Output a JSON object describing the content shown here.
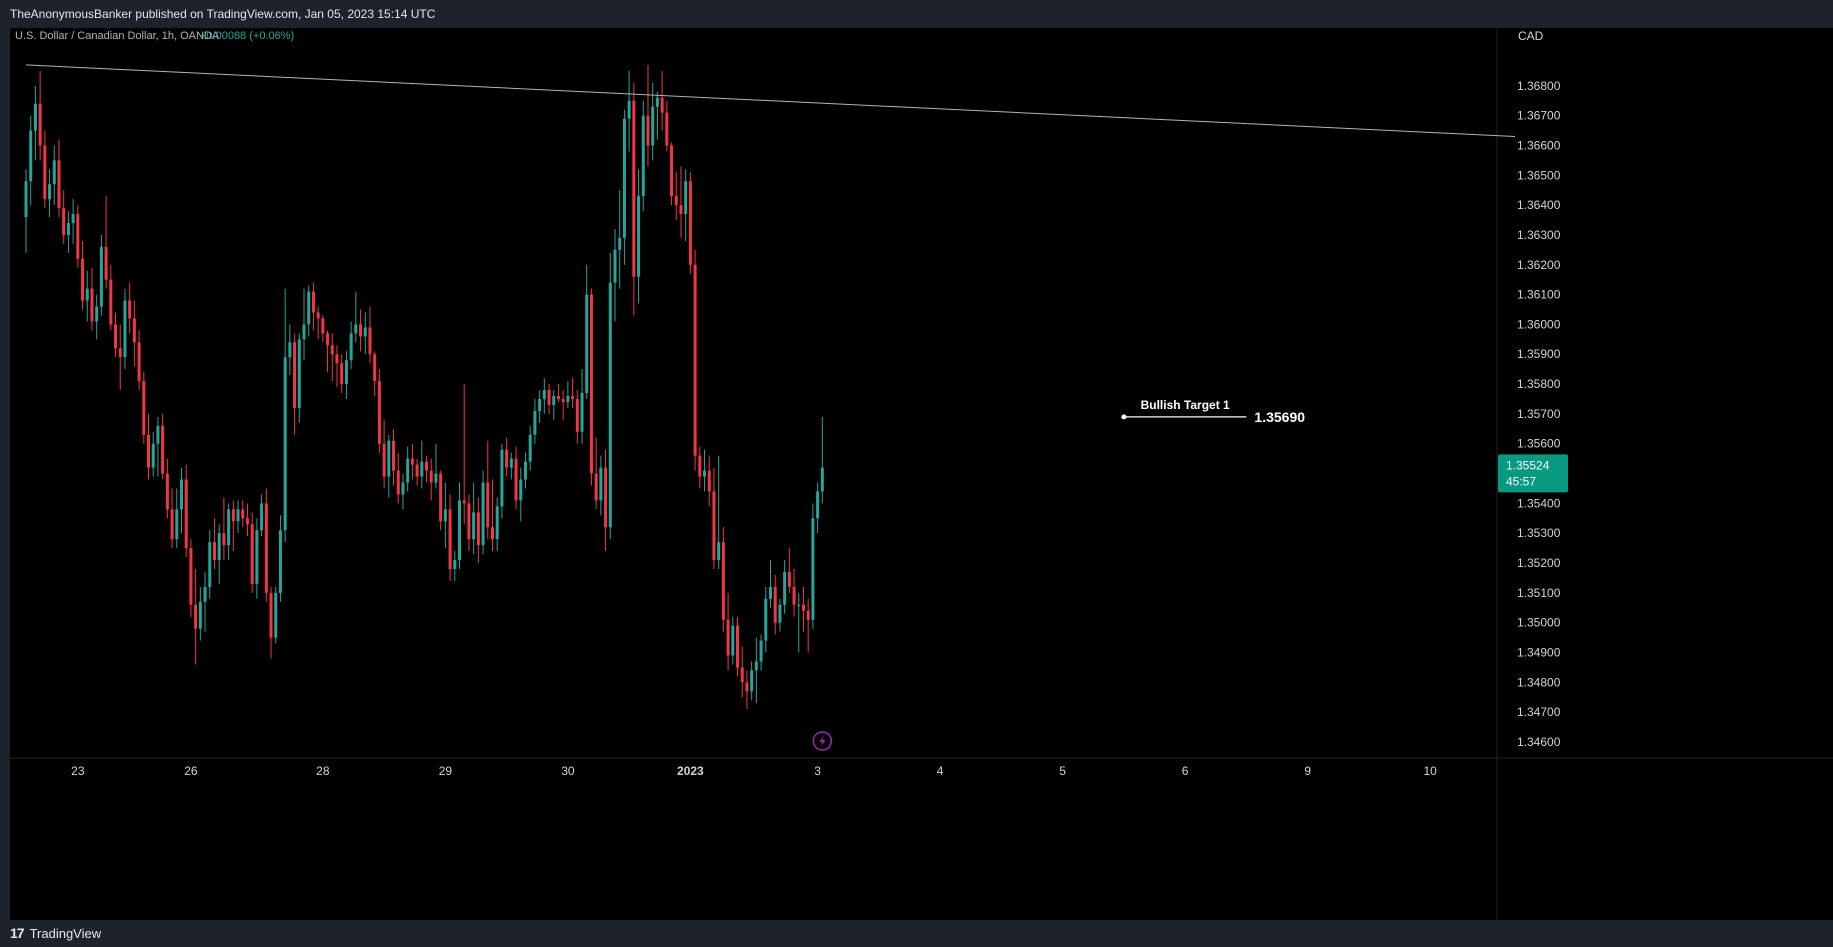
{
  "header": {
    "published_text": "TheAnonymousBanker published on TradingView.com, Jan 05, 2023 15:14 UTC"
  },
  "footer": {
    "logo_mark": "17",
    "logo_text": "TradingView"
  },
  "colors": {
    "up": "#26a69a",
    "down": "#f23645",
    "background": "#000000",
    "frame": "#1e222d",
    "price_label_bg": "#089981",
    "indicator": "#9c27b0"
  },
  "chart_data": {
    "type": "candlestick",
    "symbol_text": "U.S. Dollar / Canadian Dollar, 1h, OANDA",
    "change_text": "+0.00088 (+0.06%)",
    "currency": "CAD",
    "ylim": [
      1.3459,
      1.3692
    ],
    "y_ticks": [
      "1.34600",
      "1.34700",
      "1.34800",
      "1.34900",
      "1.35000",
      "1.35100",
      "1.35200",
      "1.35300",
      "1.35400",
      "1.35500",
      "1.35600",
      "1.35700",
      "1.35800",
      "1.35900",
      "1.36000",
      "1.36100",
      "1.36200",
      "1.36300",
      "1.36400",
      "1.36500",
      "1.36600",
      "1.36700",
      "1.36800"
    ],
    "x_ticks": [
      {
        "label": "23",
        "bar": 11
      },
      {
        "label": "26",
        "bar": 35
      },
      {
        "label": "28",
        "bar": 63
      },
      {
        "label": "29",
        "bar": 89
      },
      {
        "label": "30",
        "bar": 115
      },
      {
        "label": "2023",
        "bar": 141
      },
      {
        "label": "3",
        "bar": 168
      },
      {
        "label": "4",
        "bar": 194
      },
      {
        "label": "5",
        "bar": 220
      },
      {
        "label": "6",
        "bar": 246
      },
      {
        "label": "9",
        "bar": 272
      },
      {
        "label": "10",
        "bar": 298
      }
    ],
    "last_price": "1.35524",
    "countdown": "45:57",
    "trendline": {
      "start": {
        "bar": 0,
        "price": 1.3687
      },
      "end": {
        "bar": 316,
        "price": 1.3663
      }
    },
    "target": {
      "label": "Bullish Target 1",
      "price_text": "1.35690",
      "price": 1.3569,
      "from_bar": 233,
      "to_bar": 259
    },
    "indicator_icon": "lightning-icon",
    "candles": [
      [
        1.3636,
        1.3652,
        1.3624,
        1.3648
      ],
      [
        1.3648,
        1.367,
        1.364,
        1.3665
      ],
      [
        1.3665,
        1.368,
        1.3655,
        1.3674
      ],
      [
        1.3674,
        1.3685,
        1.3655,
        1.366
      ],
      [
        1.366,
        1.3665,
        1.3639,
        1.3642
      ],
      [
        1.3642,
        1.3652,
        1.3636,
        1.3647
      ],
      [
        1.3647,
        1.366,
        1.364,
        1.3655
      ],
      [
        1.3655,
        1.3662,
        1.3636,
        1.3639
      ],
      [
        1.3639,
        1.3645,
        1.3627,
        1.363
      ],
      [
        1.363,
        1.3638,
        1.3624,
        1.3634
      ],
      [
        1.3634,
        1.3642,
        1.3627,
        1.3637
      ],
      [
        1.3637,
        1.364,
        1.3619,
        1.3622
      ],
      [
        1.3622,
        1.3628,
        1.3605,
        1.3608
      ],
      [
        1.3608,
        1.3618,
        1.3601,
        1.3612
      ],
      [
        1.3612,
        1.3619,
        1.3598,
        1.3601
      ],
      [
        1.3601,
        1.361,
        1.3595,
        1.3606
      ],
      [
        1.3606,
        1.363,
        1.3603,
        1.3626
      ],
      [
        1.3626,
        1.3643,
        1.3612,
        1.3615
      ],
      [
        1.3615,
        1.362,
        1.3598,
        1.36
      ],
      [
        1.36,
        1.3604,
        1.3589,
        1.3592
      ],
      [
        1.3592,
        1.36,
        1.3578,
        1.3589
      ],
      [
        1.3589,
        1.3612,
        1.3585,
        1.3608
      ],
      [
        1.3608,
        1.3614,
        1.3597,
        1.3602
      ],
      [
        1.3602,
        1.3608,
        1.3586,
        1.3594
      ],
      [
        1.3594,
        1.3598,
        1.3578,
        1.3581
      ],
      [
        1.3581,
        1.3584,
        1.356,
        1.3563
      ],
      [
        1.3563,
        1.357,
        1.3548,
        1.3552
      ],
      [
        1.3552,
        1.3564,
        1.3549,
        1.356
      ],
      [
        1.356,
        1.3569,
        1.3549,
        1.3566
      ],
      [
        1.3566,
        1.357,
        1.3548,
        1.355
      ],
      [
        1.355,
        1.3555,
        1.3535,
        1.3538
      ],
      [
        1.3538,
        1.3545,
        1.3525,
        1.3528
      ],
      [
        1.3528,
        1.3545,
        1.3525,
        1.3538
      ],
      [
        1.3538,
        1.3552,
        1.353,
        1.3548
      ],
      [
        1.3548,
        1.3553,
        1.3522,
        1.3525
      ],
      [
        1.3525,
        1.3528,
        1.3502,
        1.3506
      ],
      [
        1.3506,
        1.3518,
        1.3486,
        1.3498
      ],
      [
        1.3498,
        1.3512,
        1.3494,
        1.3507
      ],
      [
        1.3507,
        1.3517,
        1.3497,
        1.3512
      ],
      [
        1.3512,
        1.3531,
        1.3508,
        1.3527
      ],
      [
        1.3527,
        1.3535,
        1.3518,
        1.3521
      ],
      [
        1.3521,
        1.3533,
        1.3513,
        1.353
      ],
      [
        1.353,
        1.3542,
        1.3521,
        1.3526
      ],
      [
        1.3526,
        1.354,
        1.3521,
        1.3538
      ],
      [
        1.3538,
        1.3541,
        1.3524,
        1.3534
      ],
      [
        1.3534,
        1.3541,
        1.353,
        1.3538
      ],
      [
        1.3538,
        1.3541,
        1.3532,
        1.3535
      ],
      [
        1.3535,
        1.354,
        1.3529,
        1.3533
      ],
      [
        1.3533,
        1.3537,
        1.351,
        1.3513
      ],
      [
        1.3513,
        1.3535,
        1.3508,
        1.3531
      ],
      [
        1.3531,
        1.3543,
        1.3529,
        1.354
      ],
      [
        1.354,
        1.3545,
        1.3507,
        1.351
      ],
      [
        1.351,
        1.3512,
        1.3488,
        1.3495
      ],
      [
        1.3495,
        1.3512,
        1.3493,
        1.351
      ],
      [
        1.351,
        1.3536,
        1.3507,
        1.3531
      ],
      [
        1.3531,
        1.3612,
        1.3527,
        1.3589
      ],
      [
        1.3589,
        1.36,
        1.3583,
        1.3594
      ],
      [
        1.3594,
        1.3597,
        1.3563,
        1.3572
      ],
      [
        1.3572,
        1.3597,
        1.3567,
        1.3595
      ],
      [
        1.3595,
        1.3612,
        1.3588,
        1.36
      ],
      [
        1.36,
        1.3613,
        1.3596,
        1.3611
      ],
      [
        1.3611,
        1.3614,
        1.3598,
        1.3604
      ],
      [
        1.3604,
        1.3606,
        1.3595,
        1.3602
      ],
      [
        1.3602,
        1.3603,
        1.3594,
        1.3597
      ],
      [
        1.3597,
        1.3598,
        1.3584,
        1.3593
      ],
      [
        1.3593,
        1.3597,
        1.3581,
        1.359
      ],
      [
        1.359,
        1.3593,
        1.3579,
        1.3587
      ],
      [
        1.3587,
        1.359,
        1.3577,
        1.358
      ],
      [
        1.358,
        1.3591,
        1.3575,
        1.3588
      ],
      [
        1.3588,
        1.3601,
        1.3585,
        1.3597
      ],
      [
        1.3597,
        1.3611,
        1.3594,
        1.36
      ],
      [
        1.36,
        1.3605,
        1.3591,
        1.3596
      ],
      [
        1.3596,
        1.3604,
        1.359,
        1.3599
      ],
      [
        1.3599,
        1.3606,
        1.3587,
        1.359
      ],
      [
        1.359,
        1.3591,
        1.3576,
        1.3581
      ],
      [
        1.3581,
        1.3585,
        1.3557,
        1.356
      ],
      [
        1.356,
        1.3568,
        1.3545,
        1.3549
      ],
      [
        1.3549,
        1.3563,
        1.3542,
        1.3561
      ],
      [
        1.3561,
        1.3565,
        1.3546,
        1.3551
      ],
      [
        1.3551,
        1.3557,
        1.354,
        1.3543
      ],
      [
        1.3543,
        1.355,
        1.3538,
        1.3547
      ],
      [
        1.3547,
        1.3559,
        1.3544,
        1.3555
      ],
      [
        1.3555,
        1.356,
        1.3548,
        1.3553
      ],
      [
        1.3553,
        1.3555,
        1.3546,
        1.3549
      ],
      [
        1.3549,
        1.3561,
        1.3545,
        1.3554
      ],
      [
        1.3554,
        1.3556,
        1.3547,
        1.3551
      ],
      [
        1.3551,
        1.3555,
        1.3541,
        1.3547
      ],
      [
        1.3547,
        1.356,
        1.3545,
        1.355
      ],
      [
        1.355,
        1.3551,
        1.3531,
        1.3534
      ],
      [
        1.3534,
        1.3547,
        1.3525,
        1.3538
      ],
      [
        1.3538,
        1.3543,
        1.3514,
        1.3518
      ],
      [
        1.3518,
        1.3524,
        1.3514,
        1.3521
      ],
      [
        1.3521,
        1.3547,
        1.3518,
        1.3541
      ],
      [
        1.3541,
        1.358,
        1.3533,
        1.354
      ],
      [
        1.354,
        1.3543,
        1.3524,
        1.3528
      ],
      [
        1.3528,
        1.3547,
        1.3523,
        1.3537
      ],
      [
        1.3537,
        1.3542,
        1.352,
        1.3526
      ],
      [
        1.3526,
        1.3551,
        1.3523,
        1.3547
      ],
      [
        1.3547,
        1.3561,
        1.3528,
        1.3532
      ],
      [
        1.3532,
        1.3548,
        1.3524,
        1.3528
      ],
      [
        1.3528,
        1.3542,
        1.3524,
        1.3539
      ],
      [
        1.3539,
        1.356,
        1.3535,
        1.3558
      ],
      [
        1.3558,
        1.3562,
        1.3549,
        1.3552
      ],
      [
        1.3552,
        1.3557,
        1.3548,
        1.3555
      ],
      [
        1.3555,
        1.3559,
        1.3538,
        1.3541
      ],
      [
        1.3541,
        1.3552,
        1.3534,
        1.3548
      ],
      [
        1.3548,
        1.3557,
        1.3545,
        1.3554
      ],
      [
        1.3554,
        1.3566,
        1.3551,
        1.3563
      ],
      [
        1.3563,
        1.3575,
        1.356,
        1.3571
      ],
      [
        1.3571,
        1.3578,
        1.3567,
        1.3575
      ],
      [
        1.3575,
        1.3582,
        1.357,
        1.3578
      ],
      [
        1.3578,
        1.358,
        1.357,
        1.3573
      ],
      [
        1.3573,
        1.3578,
        1.3568,
        1.3576
      ],
      [
        1.3576,
        1.358,
        1.3574,
        1.3575
      ],
      [
        1.3575,
        1.3578,
        1.3568,
        1.3574
      ],
      [
        1.3574,
        1.3581,
        1.3572,
        1.3576
      ],
      [
        1.3576,
        1.3582,
        1.3572,
        1.3575
      ],
      [
        1.3575,
        1.3578,
        1.356,
        1.3564
      ],
      [
        1.3564,
        1.3585,
        1.356,
        1.3577
      ],
      [
        1.3577,
        1.362,
        1.3575,
        1.361
      ],
      [
        1.361,
        1.3612,
        1.3546,
        1.355
      ],
      [
        1.355,
        1.3562,
        1.3538,
        1.3541
      ],
      [
        1.3541,
        1.3556,
        1.3536,
        1.3552
      ],
      [
        1.3552,
        1.3558,
        1.3524,
        1.3532
      ],
      [
        1.3532,
        1.3624,
        1.3528,
        1.3614
      ],
      [
        1.3614,
        1.3632,
        1.3601,
        1.3625
      ],
      [
        1.3625,
        1.3645,
        1.3612,
        1.3629
      ],
      [
        1.3629,
        1.3672,
        1.362,
        1.3669
      ],
      [
        1.3669,
        1.3685,
        1.3658,
        1.3675
      ],
      [
        1.3675,
        1.3681,
        1.3603,
        1.3616
      ],
      [
        1.3616,
        1.3652,
        1.3607,
        1.3643
      ],
      [
        1.3643,
        1.3675,
        1.3638,
        1.367
      ],
      [
        1.367,
        1.3687,
        1.3653,
        1.366
      ],
      [
        1.366,
        1.3681,
        1.3655,
        1.3673
      ],
      [
        1.3673,
        1.3678,
        1.3662,
        1.3676
      ],
      [
        1.3676,
        1.3685,
        1.3665,
        1.3671
      ],
      [
        1.3671,
        1.3675,
        1.3658,
        1.366
      ],
      [
        1.366,
        1.3661,
        1.364,
        1.3643
      ],
      [
        1.3643,
        1.3651,
        1.3635,
        1.364
      ],
      [
        1.364,
        1.3653,
        1.3629,
        1.3637
      ],
      [
        1.3637,
        1.3652,
        1.3628,
        1.3648
      ],
      [
        1.3648,
        1.3651,
        1.3617,
        1.362
      ],
      [
        1.362,
        1.3625,
        1.3551,
        1.3556
      ],
      [
        1.3556,
        1.3559,
        1.3545,
        1.3549
      ],
      [
        1.3549,
        1.3558,
        1.3544,
        1.3551
      ],
      [
        1.3551,
        1.3556,
        1.3539,
        1.3544
      ],
      [
        1.3544,
        1.3552,
        1.3518,
        1.3521
      ],
      [
        1.3521,
        1.3556,
        1.3518,
        1.3527
      ],
      [
        1.3527,
        1.3532,
        1.3497,
        1.3501
      ],
      [
        1.3501,
        1.351,
        1.3484,
        1.3489
      ],
      [
        1.3489,
        1.3502,
        1.3486,
        1.3499
      ],
      [
        1.3499,
        1.3502,
        1.3482,
        1.3485
      ],
      [
        1.3485,
        1.3492,
        1.3475,
        1.348
      ],
      [
        1.348,
        1.3484,
        1.3471,
        1.3477
      ],
      [
        1.3477,
        1.3487,
        1.3474,
        1.3484
      ],
      [
        1.3484,
        1.3495,
        1.3473,
        1.3487
      ],
      [
        1.3487,
        1.3496,
        1.3484,
        1.3494
      ],
      [
        1.3494,
        1.3512,
        1.349,
        1.3508
      ],
      [
        1.3508,
        1.3521,
        1.3505,
        1.3512
      ],
      [
        1.3512,
        1.3516,
        1.3496,
        1.35
      ],
      [
        1.35,
        1.3508,
        1.3497,
        1.3506
      ],
      [
        1.3506,
        1.3521,
        1.3503,
        1.3517
      ],
      [
        1.3517,
        1.3525,
        1.351,
        1.3512
      ],
      [
        1.3512,
        1.3518,
        1.3502,
        1.3506
      ],
      [
        1.3506,
        1.351,
        1.349,
        1.3506
      ],
      [
        1.3506,
        1.3512,
        1.3497,
        1.3504
      ],
      [
        1.3504,
        1.3508,
        1.349,
        1.3501
      ],
      [
        1.3501,
        1.354,
        1.3498,
        1.3535
      ],
      [
        1.3535,
        1.3547,
        1.353,
        1.3544
      ],
      [
        1.3544,
        1.3569,
        1.354,
        1.3552
      ]
    ]
  }
}
